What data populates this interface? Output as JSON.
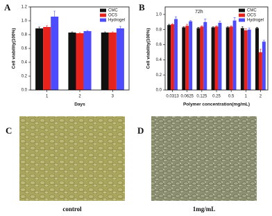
{
  "chart_data": [
    {
      "type": "bar",
      "panel_label": "A",
      "x_label": "Days",
      "y_label": "Cell viability(100%)",
      "categories": [
        "1",
        "2",
        "3"
      ],
      "series": [
        {
          "name": "CMC",
          "color": "#111111",
          "values": [
            0.89,
            0.83,
            0.83
          ],
          "errors": [
            0.02,
            0.01,
            0.01
          ]
        },
        {
          "name": "OCS",
          "color": "#e8231e",
          "values": [
            0.91,
            0.82,
            0.83
          ],
          "errors": [
            0.02,
            0.01,
            0.01
          ]
        },
        {
          "name": "Hydrogel",
          "color": "#4d4dff",
          "values": [
            1.06,
            0.85,
            0.89
          ],
          "errors": [
            0.08,
            0.01,
            0.03
          ]
        }
      ],
      "ylim": [
        0,
        1.2
      ],
      "yticks": [
        {
          "value": 0,
          "label": "0.0"
        },
        {
          "value": 0.2,
          "label": "0.2"
        },
        {
          "value": 0.4,
          "label": "0.4"
        },
        {
          "value": 0.6,
          "label": "0.6"
        },
        {
          "value": 0.8,
          "label": "0.8"
        },
        {
          "value": 1,
          "label": "1.0"
        },
        {
          "value": 1.2,
          "label": "1.2"
        }
      ]
    },
    {
      "type": "bar",
      "panel_label": "B",
      "annotation": "72h",
      "x_label": "Polymer concentration(mg/mL)",
      "y_label": "Cell viability(100%)",
      "categories": [
        "0.0313",
        "0.0625",
        "0.125",
        "0.25",
        "0.5",
        "1",
        "2"
      ],
      "series": [
        {
          "name": "CMC",
          "color": "#111111",
          "values": [
            0.86,
            0.83,
            0.82,
            0.83,
            0.83,
            0.82,
            0.82
          ],
          "errors": [
            0.01,
            0.01,
            0.01,
            0.01,
            0.01,
            0.02,
            0.01
          ]
        },
        {
          "name": "OCS",
          "color": "#e8231e",
          "values": [
            0.87,
            0.85,
            0.84,
            0.84,
            0.84,
            0.79,
            0.5
          ],
          "errors": [
            0.01,
            0.02,
            0.01,
            0.01,
            0.01,
            0.02,
            0.04
          ]
        },
        {
          "name": "Hydrogel",
          "color": "#4d4dff",
          "values": [
            0.94,
            0.91,
            0.9,
            0.89,
            0.92,
            0.8,
            0.64
          ],
          "errors": [
            0.03,
            0.01,
            0.04,
            0.02,
            0.04,
            0.02,
            0.02
          ]
        }
      ],
      "ylim": [
        0,
        1.1
      ],
      "yticks": [
        {
          "value": 0,
          "label": "0.0"
        },
        {
          "value": 0.2,
          "label": "0.2"
        },
        {
          "value": 0.4,
          "label": "0.4"
        },
        {
          "value": 0.6,
          "label": "0.6"
        },
        {
          "value": 0.8,
          "label": "0.8"
        },
        {
          "value": 1,
          "label": "1.0"
        }
      ]
    }
  ],
  "images": [
    {
      "label": "C",
      "caption": "control"
    },
    {
      "label": "D",
      "caption": "1mg/mL"
    }
  ]
}
